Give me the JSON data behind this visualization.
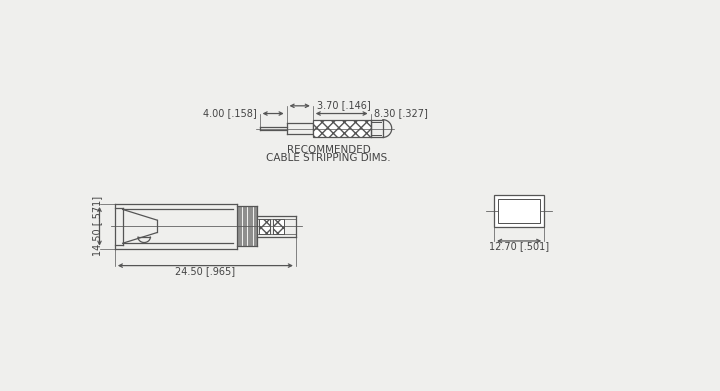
{
  "bg_color": "#efefed",
  "line_color": "#555555",
  "text_color": "#444444",
  "dim1_label": "4.00 [.158]",
  "dim2_label": "3.70 [.146]",
  "dim3_label": "8.30 [.327]",
  "dim4_label": "14.50 [.571]",
  "dim5_label": "24.50 [.965]",
  "dim6_label": "12.70 [.501]",
  "rec_text1": "RECOMMENDED",
  "rec_text2": "CABLE STRIPPING DIMS."
}
